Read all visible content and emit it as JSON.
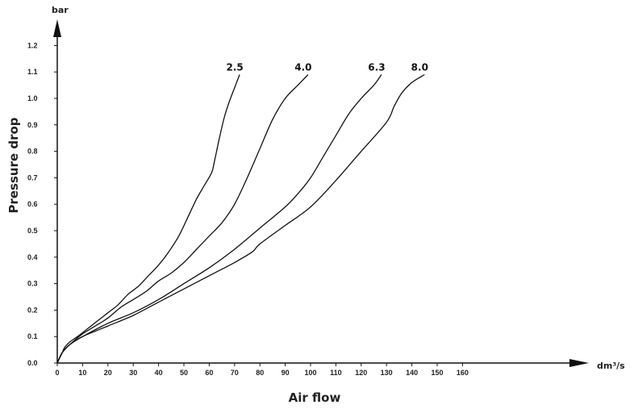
{
  "chart_data": {
    "type": "line",
    "xlabel": "Air flow",
    "ylabel": "Pressure drop",
    "x_unit": "dm³/s",
    "y_unit": "bar",
    "xlim": [
      0,
      170
    ],
    "ylim": [
      0,
      1.3
    ],
    "x_ticks": [
      0,
      10,
      20,
      30,
      40,
      50,
      60,
      70,
      80,
      90,
      100,
      110,
      120,
      130,
      140,
      150,
      160
    ],
    "y_ticks": [
      "0.0",
      "0.1",
      "0.2",
      "0.3",
      "0.4",
      "0.5",
      "0.6",
      "0.7",
      "0.8",
      "0.9",
      "1.0",
      "1.1",
      "1.2"
    ],
    "grid": false,
    "series": [
      {
        "name": "2.5",
        "x": [
          0,
          1,
          2,
          3,
          5,
          8,
          12,
          16,
          20,
          24,
          28,
          32,
          36,
          40,
          44,
          48,
          52,
          55,
          58,
          61,
          62,
          64,
          66,
          68,
          70,
          72
        ],
        "y": [
          0,
          0.02,
          0.04,
          0.06,
          0.08,
          0.1,
          0.13,
          0.16,
          0.19,
          0.22,
          0.26,
          0.29,
          0.33,
          0.37,
          0.42,
          0.48,
          0.56,
          0.62,
          0.67,
          0.72,
          0.76,
          0.85,
          0.93,
          0.99,
          1.04,
          1.09
        ]
      },
      {
        "name": "4.0",
        "x": [
          0,
          2,
          5,
          10,
          15,
          20,
          25,
          30,
          35,
          40,
          45,
          50,
          55,
          60,
          65,
          70,
          75,
          80,
          85,
          90,
          95,
          99
        ],
        "y": [
          0,
          0.04,
          0.07,
          0.11,
          0.14,
          0.17,
          0.21,
          0.24,
          0.27,
          0.31,
          0.34,
          0.38,
          0.43,
          0.48,
          0.53,
          0.6,
          0.7,
          0.81,
          0.92,
          1.0,
          1.05,
          1.09
        ]
      },
      {
        "name": "6.3",
        "x": [
          0,
          2,
          5,
          10,
          20,
          30,
          40,
          50,
          60,
          70,
          80,
          90,
          95,
          100,
          105,
          110,
          115,
          120,
          125,
          128
        ],
        "y": [
          0,
          0.04,
          0.07,
          0.1,
          0.15,
          0.19,
          0.24,
          0.3,
          0.36,
          0.43,
          0.51,
          0.59,
          0.64,
          0.7,
          0.78,
          0.86,
          0.94,
          1.0,
          1.05,
          1.09
        ]
      },
      {
        "name": "8.0",
        "x": [
          0,
          2,
          5,
          10,
          20,
          30,
          40,
          50,
          60,
          70,
          77,
          80,
          90,
          100,
          110,
          120,
          130,
          133,
          136,
          140,
          145
        ],
        "y": [
          0,
          0.04,
          0.07,
          0.1,
          0.14,
          0.18,
          0.23,
          0.28,
          0.33,
          0.38,
          0.42,
          0.45,
          0.52,
          0.59,
          0.69,
          0.8,
          0.91,
          0.97,
          1.02,
          1.06,
          1.09
        ]
      }
    ]
  }
}
